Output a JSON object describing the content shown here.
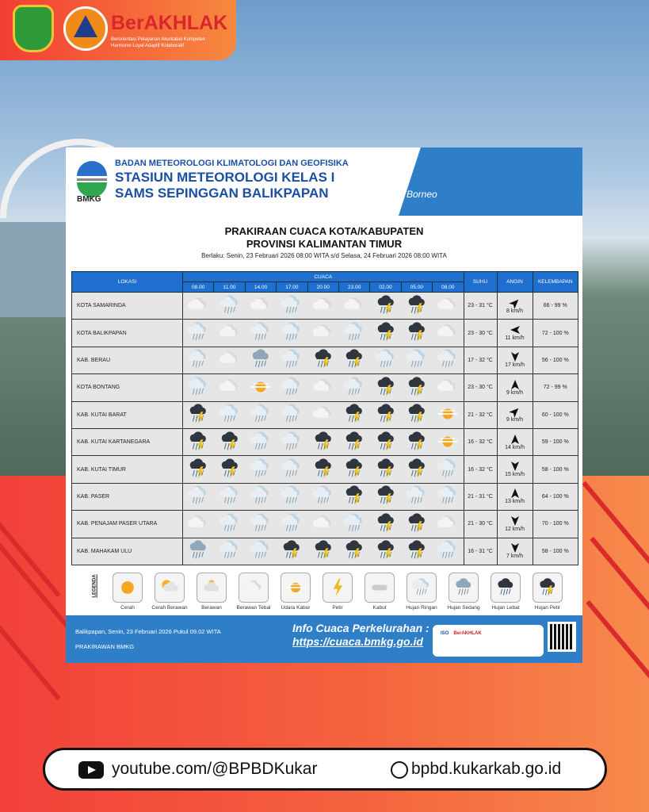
{
  "brand": {
    "name": "BerAKHLAK",
    "tagline": "Berorientasi Pelayanan Akuntabel Kompeten Harmonis Loyal Adaptif Kolaboratif",
    "logo_left": "Kabupaten Kutai Kartanegara",
    "logo_right": "BPBD Kutai Kartanegara"
  },
  "header": {
    "agency": "BADAN METEOROLOGI KLIMATOLOGI DAN GEOFISIKA",
    "station1": "STASIUN METEOROLOGI KELAS I",
    "station2": "SAMS SEPINGGAN BALIKPAPAN",
    "logo_text": "BMKG",
    "map_text": "Borneo"
  },
  "title": {
    "line1": "PRAKIRAAN CUACA KOTA/KABUPATEN",
    "line2": "PROVINSI KALIMANTAN TIMUR",
    "valid": "Berlaku: Senin, 23 Februari 2026 08:00 WITA s/d Selasa, 24 Februari 2026 08:00 WITA"
  },
  "table": {
    "headers": {
      "lokasi": "LOKASI",
      "cuaca": "CUACA",
      "suhu": "SUHU",
      "angin": "ANGIN",
      "kelembapan": "KELEMBAPAN"
    },
    "times": [
      "08.00",
      "11.00",
      "14.00",
      "17.00",
      "20.00",
      "23.00",
      "02.00",
      "05.00",
      "08.00"
    ],
    "rows": [
      {
        "lokasi": "KOTA SAMARINDA",
        "cuaca": [
          "bt",
          "hr",
          "bt",
          "hr",
          "bt",
          "bt",
          "hp",
          "hp",
          "bt"
        ],
        "suhu": "23 - 31 °C",
        "angin": "8 km/h",
        "wind_dir_deg": 45,
        "kelembapan": "66 - 99 %"
      },
      {
        "lokasi": "KOTA BALIKPAPAN",
        "cuaca": [
          "hr",
          "bt",
          "hr",
          "hr",
          "bt",
          "hr",
          "hp",
          "hp",
          "bt"
        ],
        "suhu": "23 - 30 °C",
        "angin": "11 km/h",
        "wind_dir_deg": 270,
        "kelembapan": "72 - 100 %"
      },
      {
        "lokasi": "KAB. BERAU",
        "cuaca": [
          "hr",
          "bt",
          "hs",
          "hr",
          "hp",
          "hp",
          "hr",
          "hr",
          "hr"
        ],
        "suhu": "17 - 32 °C",
        "angin": "17 km/h",
        "wind_dir_deg": 180,
        "kelembapan": "56 - 100 %"
      },
      {
        "lokasi": "KOTA BONTANG",
        "cuaca": [
          "hr",
          "bt",
          "uk",
          "hr",
          "bt",
          "hr",
          "hp",
          "hp",
          "bt"
        ],
        "suhu": "23 - 30 °C",
        "angin": "9 km/h",
        "wind_dir_deg": 0,
        "kelembapan": "72 - 99 %"
      },
      {
        "lokasi": "KAB. KUTAI BARAT",
        "cuaca": [
          "hp",
          "hr",
          "hr",
          "hr",
          "bt",
          "hp",
          "hp",
          "hp",
          "uk"
        ],
        "suhu": "21 - 32 °C",
        "angin": "9 km/h",
        "wind_dir_deg": 45,
        "kelembapan": "60 - 100 %"
      },
      {
        "lokasi": "KAB. KUTAI KARTANEGARA",
        "cuaca": [
          "hp",
          "hp",
          "hr",
          "hr",
          "hp",
          "hp",
          "hp",
          "hp",
          "uk"
        ],
        "suhu": "16 - 32 °C",
        "angin": "14 km/h",
        "wind_dir_deg": 0,
        "kelembapan": "59 - 100 %"
      },
      {
        "lokasi": "KAB. KUTAI TIMUR",
        "cuaca": [
          "hp",
          "hp",
          "hr",
          "hr",
          "hp",
          "hp",
          "hp",
          "hp",
          "hr"
        ],
        "suhu": "16 - 32 °C",
        "angin": "15 km/h",
        "wind_dir_deg": 180,
        "kelembapan": "58 - 100 %"
      },
      {
        "lokasi": "KAB. PASER",
        "cuaca": [
          "hr",
          "hr",
          "hr",
          "hr",
          "hr",
          "hp",
          "hp",
          "hr",
          "hr"
        ],
        "suhu": "21 - 31 °C",
        "angin": "13 km/h",
        "wind_dir_deg": 0,
        "kelembapan": "64 - 100 %"
      },
      {
        "lokasi": "KAB. PENAJAM PASER UTARA",
        "cuaca": [
          "bt",
          "hr",
          "hr",
          "hr",
          "bt",
          "hr",
          "hp",
          "hp",
          "bt"
        ],
        "suhu": "21 - 30 °C",
        "angin": "12 km/h",
        "wind_dir_deg": 180,
        "kelembapan": "70 - 100 %"
      },
      {
        "lokasi": "KAB. MAHAKAM ULU",
        "cuaca": [
          "hs",
          "hr",
          "hr",
          "hp",
          "hp",
          "hp",
          "hp",
          "hp",
          "hr"
        ],
        "suhu": "16 - 31 °C",
        "angin": "7 km/h",
        "wind_dir_deg": 180,
        "kelembapan": "58 - 100 %"
      }
    ]
  },
  "legend": {
    "label": "LEGENDA",
    "items": [
      {
        "code": "cerah",
        "label": "Cerah"
      },
      {
        "code": "cb",
        "label": "Cerah Berawan"
      },
      {
        "code": "berawan",
        "label": "Berawan"
      },
      {
        "code": "bt",
        "label": "Berawan Tebal"
      },
      {
        "code": "uk",
        "label": "Udara Kabur"
      },
      {
        "code": "petir",
        "label": "Petir"
      },
      {
        "code": "kabut",
        "label": "Kabut"
      },
      {
        "code": "hr",
        "label": "Hujan Ringan"
      },
      {
        "code": "hs",
        "label": "Hujan Sedang"
      },
      {
        "code": "hl",
        "label": "Hujan Lebat"
      },
      {
        "code": "hp",
        "label": "Hujan Petir"
      }
    ]
  },
  "footer": {
    "issued": "Balikpapan, Senin, 23 Februari 2026 Pukul 09.02 WITA",
    "forecaster": "PRAKIRAWAN BMKG",
    "info_label": "Info Cuaca Perkelurahan :",
    "info_url": "https://cuaca.bmkg.go.id",
    "card_iso": "ISO",
    "card_brand": "BerAKHLAK"
  },
  "social": {
    "youtube": "youtube.com/@BPBDKukar",
    "website": "bpbd.kukarkab.go.id"
  },
  "colors": {
    "table_header": "#1e6fd0",
    "footer_blue": "#2f7fc8",
    "brand_red": "#d8262a"
  }
}
